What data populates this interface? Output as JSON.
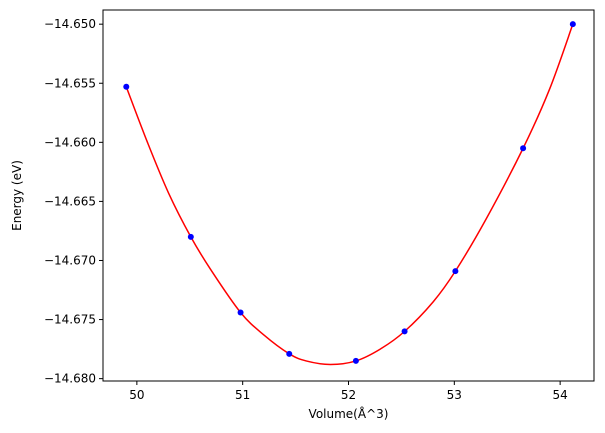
{
  "chart_data": {
    "type": "scatter",
    "title": "",
    "xlabel": "Volume(Å^3)",
    "ylabel": "Energy (eV)",
    "xlim": [
      49.68,
      54.32
    ],
    "ylim": [
      -14.6802,
      -14.6488
    ],
    "x_ticks": [
      50,
      51,
      52,
      53,
      54
    ],
    "x_tick_labels": [
      "50",
      "51",
      "52",
      "53",
      "54"
    ],
    "y_ticks": [
      -14.65,
      -14.655,
      -14.66,
      -14.665,
      -14.67,
      -14.675,
      -14.68
    ],
    "y_tick_labels": [
      "−14.650",
      "−14.655",
      "−14.660",
      "−14.665",
      "−14.670",
      "−14.675",
      "−14.680"
    ],
    "grid": false,
    "series": [
      {
        "type": "scatter",
        "color": "#0000ff",
        "x": [
          49.9,
          50.51,
          50.98,
          51.44,
          52.07,
          52.53,
          53.01,
          53.65,
          54.12
        ],
        "y": [
          -14.6553,
          -14.668,
          -14.6744,
          -14.6779,
          -14.6785,
          -14.676,
          -14.6709,
          -14.6605,
          -14.65
        ]
      },
      {
        "type": "line",
        "color": "#ff0000",
        "x": [
          49.9,
          50.1,
          50.3,
          50.51,
          50.7,
          50.98,
          51.2,
          51.44,
          51.6,
          51.83,
          52.07,
          52.3,
          52.53,
          52.8,
          53.01,
          53.3,
          53.65,
          53.9,
          54.12
        ],
        "y": [
          -14.6553,
          -14.66,
          -14.6643,
          -14.668,
          -14.6708,
          -14.6744,
          -14.6763,
          -14.6779,
          -14.6785,
          -14.6788,
          -14.6785,
          -14.6775,
          -14.676,
          -14.6735,
          -14.6709,
          -14.6665,
          -14.6605,
          -14.6555,
          -14.65
        ]
      }
    ]
  }
}
